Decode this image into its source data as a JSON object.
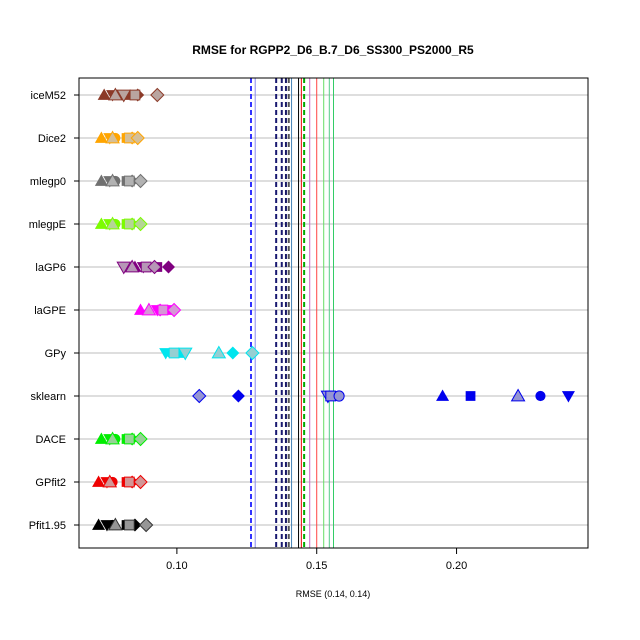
{
  "chart_data": {
    "type": "scatter",
    "title": "RMSE for RGPP2_D6_B.7_D6_SS300_PS2000_R5",
    "xlabel": "RMSE (0.14, 0.14)",
    "ylabel": "",
    "xlim": [
      0.065,
      0.247
    ],
    "x_ticks": [
      0.1,
      0.15,
      0.2
    ],
    "x_tick_labels": [
      "0.10",
      "0.15",
      "0.20"
    ],
    "grid": "horizontal lines at each category",
    "categories": [
      "iceM52",
      "Dice2",
      "mlegp0",
      "mlegpE",
      "laGP6",
      "laGPE",
      "GPy",
      "sklearn",
      "DACE",
      "GPfit2",
      "Pfit1.95"
    ],
    "colors": {
      "iceM52": "#8b3a28",
      "Dice2": "#ffa500",
      "mlegp0": "#707070",
      "mlegpE": "#7cfc00",
      "laGP6": "#800080",
      "laGPE": "#ff00ff",
      "GPy": "#00e5ee",
      "sklearn": "#0000ee",
      "DACE": "#00ee00",
      "GPfit2": "#ee0000",
      "Pfit1.95": "#000000"
    },
    "series": [
      {
        "category": "iceM52",
        "points": [
          {
            "x": 0.074,
            "shape": "triangle"
          },
          {
            "x": 0.077,
            "shape": "triangle-down"
          },
          {
            "x": 0.08,
            "shape": "circle"
          },
          {
            "x": 0.083,
            "shape": "square"
          },
          {
            "x": 0.086,
            "shape": "diamond"
          },
          {
            "x": 0.078,
            "shape": "triangle",
            "outline": true
          },
          {
            "x": 0.081,
            "shape": "triangle-down",
            "outline": true
          },
          {
            "x": 0.085,
            "shape": "square",
            "outline": true
          },
          {
            "x": 0.093,
            "shape": "diamond",
            "outline": true
          }
        ]
      },
      {
        "category": "Dice2",
        "points": [
          {
            "x": 0.073,
            "shape": "triangle"
          },
          {
            "x": 0.076,
            "shape": "triangle-down"
          },
          {
            "x": 0.078,
            "shape": "circle"
          },
          {
            "x": 0.082,
            "shape": "square"
          },
          {
            "x": 0.084,
            "shape": "diamond"
          },
          {
            "x": 0.077,
            "shape": "triangle",
            "outline": true
          },
          {
            "x": 0.083,
            "shape": "square",
            "outline": true
          },
          {
            "x": 0.086,
            "shape": "diamond",
            "outline": true
          }
        ]
      },
      {
        "category": "mlegp0",
        "points": [
          {
            "x": 0.073,
            "shape": "triangle"
          },
          {
            "x": 0.076,
            "shape": "triangle-down"
          },
          {
            "x": 0.078,
            "shape": "circle"
          },
          {
            "x": 0.082,
            "shape": "square"
          },
          {
            "x": 0.084,
            "shape": "diamond"
          },
          {
            "x": 0.077,
            "shape": "triangle",
            "outline": true
          },
          {
            "x": 0.083,
            "shape": "square",
            "outline": true
          },
          {
            "x": 0.087,
            "shape": "diamond",
            "outline": true
          }
        ]
      },
      {
        "category": "mlegpE",
        "points": [
          {
            "x": 0.073,
            "shape": "triangle"
          },
          {
            "x": 0.076,
            "shape": "triangle-down"
          },
          {
            "x": 0.078,
            "shape": "circle"
          },
          {
            "x": 0.082,
            "shape": "square"
          },
          {
            "x": 0.084,
            "shape": "diamond"
          },
          {
            "x": 0.077,
            "shape": "triangle",
            "outline": true
          },
          {
            "x": 0.083,
            "shape": "square",
            "outline": true
          },
          {
            "x": 0.087,
            "shape": "diamond",
            "outline": true
          }
        ]
      },
      {
        "category": "laGP6",
        "points": [
          {
            "x": 0.085,
            "shape": "triangle"
          },
          {
            "x": 0.088,
            "shape": "triangle-down"
          },
          {
            "x": 0.09,
            "shape": "circle"
          },
          {
            "x": 0.093,
            "shape": "square"
          },
          {
            "x": 0.097,
            "shape": "diamond"
          },
          {
            "x": 0.081,
            "shape": "triangle-down",
            "outline": true
          },
          {
            "x": 0.084,
            "shape": "triangle",
            "outline": true
          },
          {
            "x": 0.089,
            "shape": "square",
            "outline": true
          },
          {
            "x": 0.092,
            "shape": "diamond",
            "outline": true
          }
        ]
      },
      {
        "category": "laGPE",
        "points": [
          {
            "x": 0.087,
            "shape": "triangle"
          },
          {
            "x": 0.093,
            "shape": "triangle-down"
          },
          {
            "x": 0.096,
            "shape": "circle"
          },
          {
            "x": 0.098,
            "shape": "square"
          },
          {
            "x": 0.094,
            "shape": "diamond"
          },
          {
            "x": 0.09,
            "shape": "triangle",
            "outline": true
          },
          {
            "x": 0.095,
            "shape": "square",
            "outline": true
          },
          {
            "x": 0.099,
            "shape": "diamond",
            "outline": true
          }
        ]
      },
      {
        "category": "GPy",
        "points": [
          {
            "x": 0.096,
            "shape": "triangle-down"
          },
          {
            "x": 0.098,
            "shape": "circle"
          },
          {
            "x": 0.101,
            "shape": "square"
          },
          {
            "x": 0.115,
            "shape": "triangle"
          },
          {
            "x": 0.12,
            "shape": "diamond"
          },
          {
            "x": 0.099,
            "shape": "square",
            "outline": true
          },
          {
            "x": 0.103,
            "shape": "triangle-down",
            "outline": true
          },
          {
            "x": 0.115,
            "shape": "triangle",
            "outline": true
          },
          {
            "x": 0.127,
            "shape": "diamond",
            "outline": true
          }
        ]
      },
      {
        "category": "sklearn",
        "points": [
          {
            "x": 0.108,
            "shape": "diamond",
            "outline": true
          },
          {
            "x": 0.122,
            "shape": "diamond"
          },
          {
            "x": 0.154,
            "shape": "triangle-down",
            "outline": true
          },
          {
            "x": 0.155,
            "shape": "square",
            "outline": true
          },
          {
            "x": 0.158,
            "shape": "circle",
            "outline": true
          },
          {
            "x": 0.195,
            "shape": "triangle"
          },
          {
            "x": 0.205,
            "shape": "square"
          },
          {
            "x": 0.222,
            "shape": "triangle",
            "outline": true
          },
          {
            "x": 0.23,
            "shape": "circle"
          },
          {
            "x": 0.24,
            "shape": "triangle-down"
          }
        ]
      },
      {
        "category": "DACE",
        "points": [
          {
            "x": 0.073,
            "shape": "triangle"
          },
          {
            "x": 0.076,
            "shape": "triangle-down"
          },
          {
            "x": 0.078,
            "shape": "circle"
          },
          {
            "x": 0.082,
            "shape": "square"
          },
          {
            "x": 0.084,
            "shape": "diamond"
          },
          {
            "x": 0.077,
            "shape": "triangle",
            "outline": true
          },
          {
            "x": 0.083,
            "shape": "square",
            "outline": true
          },
          {
            "x": 0.087,
            "shape": "diamond",
            "outline": true
          }
        ]
      },
      {
        "category": "GPfit2",
        "points": [
          {
            "x": 0.072,
            "shape": "triangle"
          },
          {
            "x": 0.075,
            "shape": "triangle-down"
          },
          {
            "x": 0.077,
            "shape": "circle"
          },
          {
            "x": 0.082,
            "shape": "square"
          },
          {
            "x": 0.084,
            "shape": "diamond"
          },
          {
            "x": 0.076,
            "shape": "triangle",
            "outline": true
          },
          {
            "x": 0.083,
            "shape": "square",
            "outline": true
          },
          {
            "x": 0.087,
            "shape": "diamond",
            "outline": true
          }
        ]
      },
      {
        "category": "Pfit1.95",
        "points": [
          {
            "x": 0.072,
            "shape": "triangle"
          },
          {
            "x": 0.075,
            "shape": "triangle-down"
          },
          {
            "x": 0.077,
            "shape": "circle"
          },
          {
            "x": 0.082,
            "shape": "square"
          },
          {
            "x": 0.085,
            "shape": "diamond"
          },
          {
            "x": 0.078,
            "shape": "triangle",
            "outline": true
          },
          {
            "x": 0.083,
            "shape": "square",
            "outline": true
          },
          {
            "x": 0.089,
            "shape": "diamond",
            "outline": true
          }
        ]
      }
    ],
    "vlines": [
      {
        "x": 0.1265,
        "color": "#3333ff",
        "dashed": true
      },
      {
        "x": 0.128,
        "color": "#8888ee",
        "dashed": false
      },
      {
        "x": 0.1355,
        "color": "#191970",
        "dashed": true
      },
      {
        "x": 0.1375,
        "color": "#191970",
        "dashed": true
      },
      {
        "x": 0.139,
        "color": "#1c1c6a",
        "dashed": true
      },
      {
        "x": 0.14,
        "color": "#555555",
        "dashed": true
      },
      {
        "x": 0.141,
        "color": "#4682b4",
        "dashed": false
      },
      {
        "x": 0.1435,
        "color": "#000000",
        "dashed": false
      },
      {
        "x": 0.1445,
        "color": "#ee0000",
        "dashed": false
      },
      {
        "x": 0.1455,
        "color": "#00aa00",
        "dashed": true
      },
      {
        "x": 0.1475,
        "color": "#cc66cc",
        "dashed": false
      },
      {
        "x": 0.15,
        "color": "#ff4444",
        "dashed": false
      },
      {
        "x": 0.1525,
        "color": "#66dd66",
        "dashed": false
      },
      {
        "x": 0.1545,
        "color": "#55cc88",
        "dashed": false
      },
      {
        "x": 0.156,
        "color": "#33cc66",
        "dashed": false
      }
    ]
  }
}
